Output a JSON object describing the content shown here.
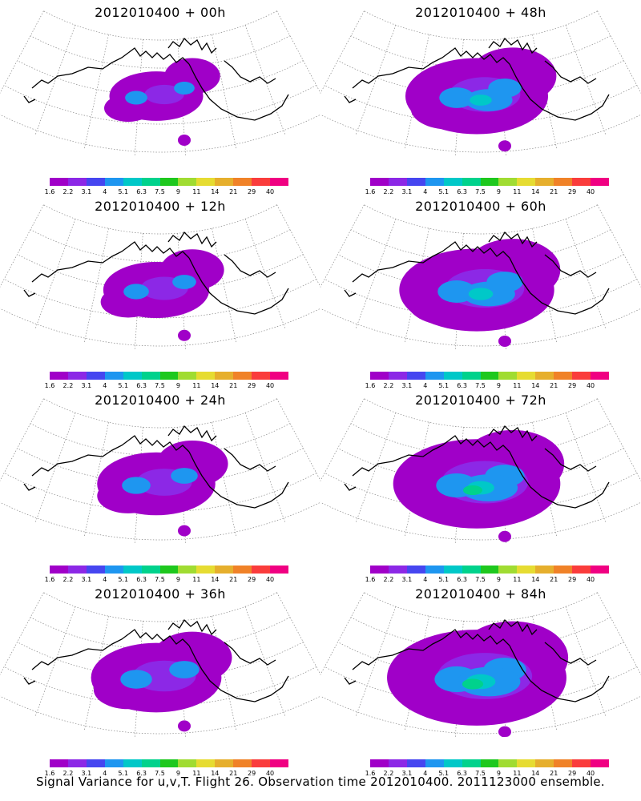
{
  "footer": "Signal Variance for u,v,T. Flight 26. Observation time 2012010400. 2011123000 ensemble.",
  "colorbar": {
    "colors": [
      "#a000c8",
      "#8c28e6",
      "#4646f0",
      "#1e96f0",
      "#00c8c8",
      "#00d28c",
      "#1ec81e",
      "#a0dc32",
      "#e6dc32",
      "#e6af2d",
      "#f08228",
      "#fa3c3c",
      "#f00082"
    ],
    "labels": [
      "1.6",
      "2.2",
      "3.1",
      "4",
      "5.1",
      "6.3",
      "7.5",
      "9",
      "11",
      "14",
      "21",
      "29",
      "40"
    ]
  },
  "panels": [
    {
      "title": "2012010400 + 00h",
      "lead": 0,
      "col": 0,
      "row": 0
    },
    {
      "title": "2012010400 + 48h",
      "lead": 48,
      "col": 1,
      "row": 0
    },
    {
      "title": "2012010400 + 12h",
      "lead": 12,
      "col": 0,
      "row": 1
    },
    {
      "title": "2012010400 + 60h",
      "lead": 60,
      "col": 1,
      "row": 1
    },
    {
      "title": "2012010400 + 24h",
      "lead": 24,
      "col": 0,
      "row": 2
    },
    {
      "title": "2012010400 + 72h",
      "lead": 72,
      "col": 1,
      "row": 2
    },
    {
      "title": "2012010400 + 36h",
      "lead": 36,
      "col": 0,
      "row": 3
    },
    {
      "title": "2012010400 + 84h",
      "lead": 84,
      "col": 1,
      "row": 3
    }
  ]
}
